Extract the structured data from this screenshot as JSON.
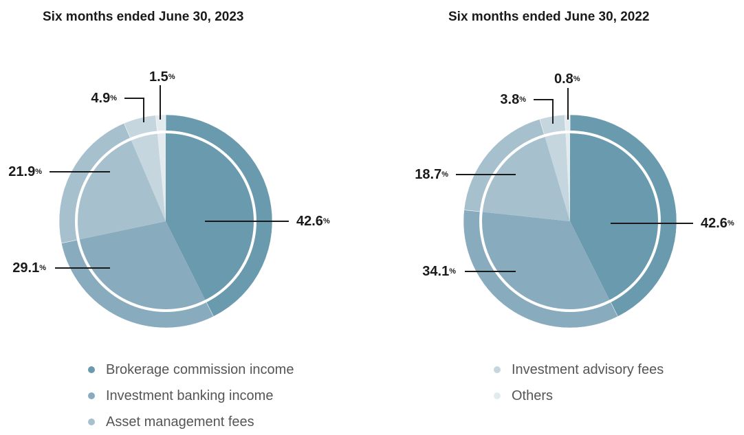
{
  "chart_data": [
    {
      "type": "pie",
      "title": "Six months ended June 30, 2023",
      "categories": [
        "Brokerage commission income",
        "Investment banking income",
        "Asset management fees",
        "Investment advisory fees",
        "Others"
      ],
      "values": [
        42.6,
        29.1,
        21.9,
        4.9,
        1.5
      ],
      "labels": [
        "42.6",
        "29.1",
        "21.9",
        "4.9",
        "1.5"
      ],
      "unit": "%"
    },
    {
      "type": "pie",
      "title": "Six months ended June 30, 2022",
      "categories": [
        "Brokerage commission income",
        "Investment banking income",
        "Asset management fees",
        "Investment advisory fees",
        "Others"
      ],
      "values": [
        42.6,
        34.1,
        18.7,
        3.8,
        0.8
      ],
      "labels": [
        "42.6",
        "34.1",
        "18.7",
        "3.8",
        "0.8"
      ],
      "unit": "%"
    }
  ],
  "legend": {
    "left": [
      {
        "label": "Brokerage commission income",
        "color": "#6a9aad"
      },
      {
        "label": "Investment banking income",
        "color": "#89abbe"
      },
      {
        "label": "Asset management fees",
        "color": "#a7c0cd"
      }
    ],
    "right": [
      {
        "label": "Investment advisory fees",
        "color": "#c5d6de"
      },
      {
        "label": "Others",
        "color": "#e3ebef"
      }
    ]
  },
  "colors": {
    "inner": [
      "#6a9aad",
      "#89abbe",
      "#a7c0cd",
      "#c5d6de",
      "#e3ebef"
    ],
    "outer": [
      "#6a9aad",
      "#89abbe",
      "#a7c0cd",
      "#c5d6de",
      "#e3ebef"
    ],
    "ring": "#ffffff",
    "leader": "#1a1a1a"
  }
}
